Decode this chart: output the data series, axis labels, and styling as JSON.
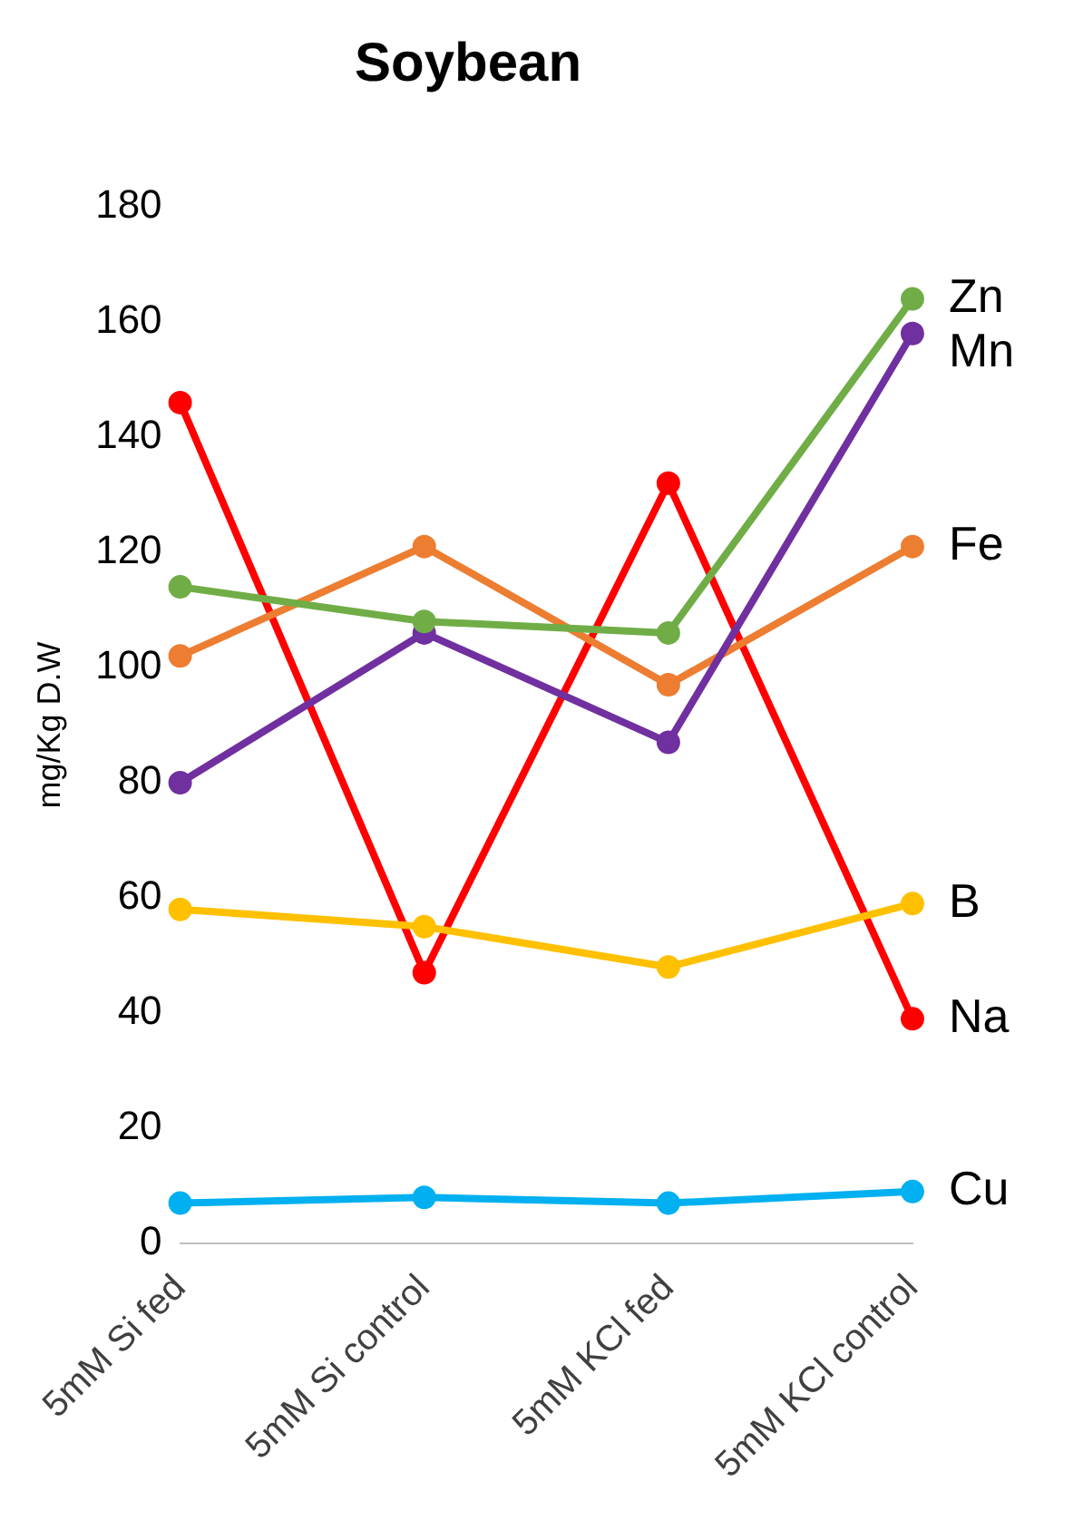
{
  "chart_data": {
    "type": "line",
    "title": "Soybean",
    "ylabel": "mg/Kg D.W",
    "categories": [
      "5mM Si fed",
      "5mM Si control",
      "5mM KCl fed",
      "5mM KCl control"
    ],
    "series": [
      {
        "name": "Zn",
        "color": "#70ad47",
        "values": [
          114,
          108,
          106,
          164
        ]
      },
      {
        "name": "Mn",
        "color": "#7030a0",
        "values": [
          80,
          106,
          87,
          158
        ]
      },
      {
        "name": "Fe",
        "color": "#ed7d31",
        "values": [
          102,
          121,
          97,
          121
        ]
      },
      {
        "name": "B",
        "color": "#ffc000",
        "values": [
          58,
          55,
          48,
          59
        ]
      },
      {
        "name": "Na",
        "color": "#ff0000",
        "values": [
          146,
          47,
          132,
          39
        ]
      },
      {
        "name": "Cu",
        "color": "#00b0f0",
        "values": [
          7,
          8,
          7,
          9
        ]
      }
    ],
    "ylim": [
      0,
      180
    ],
    "yticks": [
      0,
      20,
      40,
      60,
      80,
      100,
      120,
      140,
      160,
      180
    ],
    "grid": false,
    "legend": false,
    "marker": "circle",
    "line_style": "solid"
  }
}
